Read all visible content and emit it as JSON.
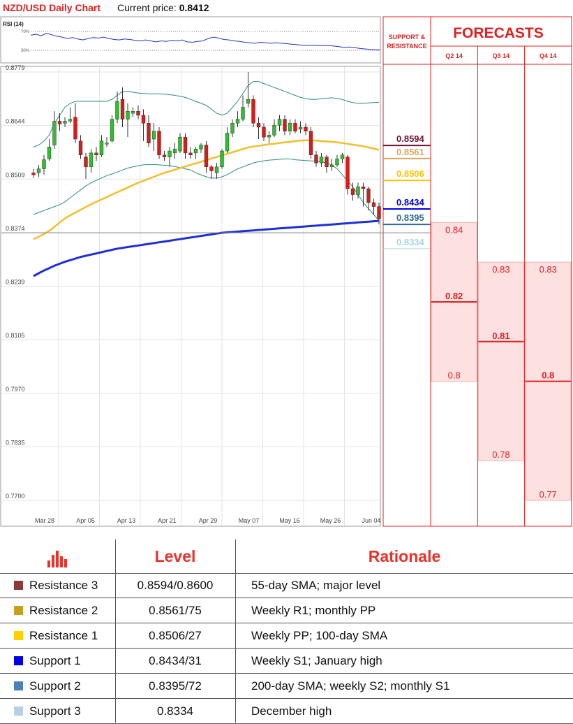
{
  "header": {
    "title": "NZD/USD Daily Chart",
    "price_label": "Current price:",
    "price_value": "0.8412"
  },
  "rsi": {
    "label": "RSI (14)",
    "upper_label": "70%",
    "lower_label": "30%"
  },
  "chart_data": {
    "type": "candlestick",
    "y_ticks": [
      "0.8779",
      "0.8644",
      "0.8509",
      "0.8374",
      "0.8239",
      "0.8105",
      "0.7970",
      "0.7835",
      "0.7700"
    ],
    "ylim": [
      0.77,
      0.8779
    ],
    "x_ticks": [
      "Mar 28",
      "Apr 05",
      "Apr 13",
      "Apr 21",
      "Apr 29",
      "May 07",
      "May 16",
      "May 26",
      "Jun 04"
    ],
    "grid": true,
    "candles": [
      [
        0.8525,
        0.852,
        0.8535,
        0.8512
      ],
      [
        0.8525,
        0.8535,
        0.8545,
        0.8515
      ],
      [
        0.8535,
        0.8558,
        0.857,
        0.852
      ],
      [
        0.856,
        0.859,
        0.861,
        0.8555
      ],
      [
        0.8595,
        0.8655,
        0.868,
        0.8585
      ],
      [
        0.8655,
        0.8648,
        0.8675,
        0.863
      ],
      [
        0.865,
        0.8655,
        0.8665,
        0.864
      ],
      [
        0.8655,
        0.866,
        0.869,
        0.865
      ],
      [
        0.8665,
        0.861,
        0.87,
        0.86
      ],
      [
        0.8605,
        0.857,
        0.862,
        0.856
      ],
      [
        0.8565,
        0.854,
        0.8575,
        0.851
      ],
      [
        0.854,
        0.8575,
        0.8585,
        0.8525
      ],
      [
        0.8575,
        0.857,
        0.859,
        0.8555
      ],
      [
        0.857,
        0.8605,
        0.862,
        0.8565
      ],
      [
        0.86,
        0.86,
        0.8615,
        0.859
      ],
      [
        0.8605,
        0.866,
        0.867,
        0.86
      ],
      [
        0.866,
        0.8705,
        0.873,
        0.865
      ],
      [
        0.871,
        0.866,
        0.874,
        0.864
      ],
      [
        0.866,
        0.868,
        0.87,
        0.8615
      ],
      [
        0.8675,
        0.868,
        0.869,
        0.8665
      ],
      [
        0.868,
        0.867,
        0.8695,
        0.866
      ],
      [
        0.867,
        0.865,
        0.8685,
        0.8605
      ],
      [
        0.865,
        0.86,
        0.867,
        0.859
      ],
      [
        0.861,
        0.863,
        0.865,
        0.858
      ],
      [
        0.863,
        0.857,
        0.864,
        0.856
      ],
      [
        0.857,
        0.8565,
        0.858,
        0.8555
      ],
      [
        0.8565,
        0.858,
        0.859,
        0.854
      ],
      [
        0.8575,
        0.8585,
        0.86,
        0.856
      ],
      [
        0.858,
        0.8615,
        0.8625,
        0.8575
      ],
      [
        0.8615,
        0.8575,
        0.8625,
        0.856
      ],
      [
        0.8575,
        0.857,
        0.859,
        0.856
      ],
      [
        0.8575,
        0.8585,
        0.859,
        0.856
      ],
      [
        0.8585,
        0.8595,
        0.86,
        0.8575
      ],
      [
        0.8595,
        0.854,
        0.8605,
        0.8525
      ],
      [
        0.854,
        0.853,
        0.8545,
        0.851
      ],
      [
        0.8525,
        0.854,
        0.855,
        0.851
      ],
      [
        0.854,
        0.858,
        0.8585,
        0.8535
      ],
      [
        0.858,
        0.8625,
        0.864,
        0.8575
      ],
      [
        0.8625,
        0.865,
        0.866,
        0.8615
      ],
      [
        0.865,
        0.866,
        0.868,
        0.864
      ],
      [
        0.866,
        0.869,
        0.872,
        0.8655
      ],
      [
        0.87,
        0.871,
        0.8779,
        0.869
      ],
      [
        0.871,
        0.865,
        0.872,
        0.864
      ],
      [
        0.865,
        0.864,
        0.8665,
        0.861
      ],
      [
        0.864,
        0.8615,
        0.865,
        0.8605
      ],
      [
        0.8615,
        0.862,
        0.863,
        0.86
      ],
      [
        0.862,
        0.8645,
        0.866,
        0.8615
      ],
      [
        0.8645,
        0.866,
        0.867,
        0.863
      ],
      [
        0.866,
        0.863,
        0.867,
        0.862
      ],
      [
        0.863,
        0.865,
        0.866,
        0.862
      ],
      [
        0.865,
        0.863,
        0.866,
        0.8625
      ],
      [
        0.8635,
        0.864,
        0.8655,
        0.8625
      ],
      [
        0.864,
        0.863,
        0.865,
        0.862
      ],
      [
        0.863,
        0.857,
        0.864,
        0.856
      ],
      [
        0.857,
        0.855,
        0.858,
        0.854
      ],
      [
        0.855,
        0.8565,
        0.8575,
        0.854
      ],
      [
        0.8565,
        0.854,
        0.857,
        0.8525
      ],
      [
        0.854,
        0.8545,
        0.856,
        0.853
      ],
      [
        0.8545,
        0.856,
        0.857,
        0.854
      ],
      [
        0.856,
        0.857,
        0.8575,
        0.855
      ],
      [
        0.8565,
        0.8485,
        0.857,
        0.847
      ],
      [
        0.8485,
        0.847,
        0.85,
        0.8455
      ],
      [
        0.847,
        0.849,
        0.85,
        0.846
      ],
      [
        0.849,
        0.8485,
        0.85,
        0.844
      ],
      [
        0.8485,
        0.845,
        0.849,
        0.843
      ],
      [
        0.845,
        0.844,
        0.846,
        0.842
      ],
      [
        0.844,
        0.841,
        0.845,
        0.8395
      ]
    ],
    "sma55": [
      0.8358,
      0.8364,
      0.8371,
      0.8379,
      0.8389,
      0.84,
      0.841,
      0.8418,
      0.8425,
      0.8432,
      0.8439,
      0.8446,
      0.8452,
      0.8458,
      0.8464,
      0.847,
      0.8476,
      0.8482,
      0.8488,
      0.8494,
      0.85,
      0.8505,
      0.851,
      0.8515,
      0.852,
      0.8525,
      0.8529,
      0.8533,
      0.8537,
      0.8541,
      0.8545,
      0.8549,
      0.8553,
      0.8557,
      0.8561,
      0.8565,
      0.8569,
      0.8573,
      0.8577,
      0.8581,
      0.8585,
      0.8589,
      0.8591,
      0.8593,
      0.8595,
      0.8597,
      0.8598,
      0.86,
      0.8602,
      0.8603,
      0.8605,
      0.8606,
      0.8607,
      0.8607,
      0.8606,
      0.8605,
      0.8604,
      0.8603,
      0.8602,
      0.86,
      0.8598,
      0.8596,
      0.8594,
      0.8592,
      0.8589,
      0.8586,
      0.8583
    ],
    "sma200": [
      0.8265,
      0.8272,
      0.8279,
      0.8285,
      0.8291,
      0.8296,
      0.8301,
      0.8305,
      0.8309,
      0.8313,
      0.8316,
      0.8319,
      0.8322,
      0.8325,
      0.8328,
      0.8331,
      0.8334,
      0.8336,
      0.8338,
      0.834,
      0.8342,
      0.8344,
      0.8346,
      0.8348,
      0.835,
      0.8352,
      0.8354,
      0.8356,
      0.8358,
      0.836,
      0.8362,
      0.8364,
      0.8366,
      0.8368,
      0.837,
      0.8372,
      0.8374,
      0.8375,
      0.8376,
      0.8377,
      0.8378,
      0.8379,
      0.838,
      0.8381,
      0.8382,
      0.8383,
      0.8384,
      0.8385,
      0.8386,
      0.8387,
      0.8388,
      0.8389,
      0.839,
      0.8391,
      0.8392,
      0.8393,
      0.8394,
      0.8395,
      0.8396,
      0.8397,
      0.8398,
      0.8399,
      0.84,
      0.8401,
      0.8402,
      0.8403,
      0.8404
    ],
    "bb_upper": [
      0.859,
      0.8595,
      0.8605,
      0.862,
      0.865,
      0.867,
      0.869,
      0.87,
      0.8705,
      0.8705,
      0.8705,
      0.8705,
      0.8705,
      0.8705,
      0.8705,
      0.871,
      0.872,
      0.873,
      0.873,
      0.8728,
      0.8726,
      0.8725,
      0.8724,
      0.8724,
      0.8724,
      0.8723,
      0.8722,
      0.872,
      0.8718,
      0.8715,
      0.871,
      0.8705,
      0.87,
      0.8695,
      0.8685,
      0.8675,
      0.867,
      0.8675,
      0.869,
      0.8705,
      0.8725,
      0.8745,
      0.8755,
      0.8755,
      0.875,
      0.8745,
      0.874,
      0.8735,
      0.873,
      0.8725,
      0.872,
      0.8715,
      0.8712,
      0.871,
      0.871,
      0.8712,
      0.8713,
      0.8714,
      0.8712,
      0.871,
      0.8705,
      0.8702,
      0.87,
      0.87,
      0.8701,
      0.8702,
      0.8703
    ],
    "bb_lower": [
      0.842,
      0.8425,
      0.843,
      0.8435,
      0.844,
      0.8445,
      0.8452,
      0.8462,
      0.8472,
      0.8482,
      0.8492,
      0.85,
      0.8506,
      0.8512,
      0.8518,
      0.8522,
      0.8527,
      0.8532,
      0.8537,
      0.854,
      0.8543,
      0.8545,
      0.8546,
      0.8546,
      0.8545,
      0.8544,
      0.8543,
      0.8541,
      0.8538,
      0.8535,
      0.8532,
      0.8525,
      0.852,
      0.8515,
      0.8512,
      0.8512,
      0.8515,
      0.852,
      0.8528,
      0.8535,
      0.854,
      0.8545,
      0.855,
      0.8553,
      0.8555,
      0.8557,
      0.8558,
      0.8559,
      0.856,
      0.856,
      0.8558,
      0.8557,
      0.8556,
      0.8555,
      0.8555,
      0.8553,
      0.855,
      0.8545,
      0.8535,
      0.852,
      0.8505,
      0.849,
      0.847,
      0.845,
      0.8435,
      0.842,
      0.8405
    ],
    "rsi_values": [
      62,
      64,
      61,
      66,
      63,
      60,
      58,
      55,
      57,
      54,
      52,
      55,
      57,
      56,
      58,
      55,
      53,
      52,
      54,
      53,
      51,
      50,
      52,
      50,
      48,
      50,
      49,
      51,
      50,
      52,
      48,
      47,
      49,
      50,
      55,
      58,
      56,
      53,
      52,
      50,
      49,
      47,
      46,
      45,
      47,
      46,
      45,
      46,
      45,
      44,
      43,
      42,
      41,
      40,
      41,
      40,
      40,
      40,
      39,
      38,
      36,
      37,
      36,
      34,
      33,
      32,
      31,
      31
    ]
  },
  "levels_panel": {
    "title": "SUPPORT & RESISTANCE",
    "levels": [
      {
        "label": "0.8594",
        "value": 0.8594,
        "color": "#6b1230"
      },
      {
        "label": "0.8561",
        "value": 0.8561,
        "color": "#d4a85c"
      },
      {
        "label": "0.8506",
        "value": 0.8506,
        "color": "#ffc000"
      },
      {
        "label": "0.8434",
        "value": 0.8434,
        "color": "#0000e0"
      },
      {
        "label": "0.8395",
        "value": 0.8395,
        "color": "#2f6b8a"
      },
      {
        "label": "0.8334",
        "value": 0.8334,
        "color": "#a8d8de"
      }
    ]
  },
  "forecasts": {
    "title": "FORECASTS",
    "columns": [
      {
        "label": "Q2 14",
        "high": 0.84,
        "high_label": "0.84",
        "mid": 0.82,
        "mid_label": "0.82",
        "low": 0.8,
        "low_label": "0.8"
      },
      {
        "label": "Q3 14",
        "high": 0.83,
        "high_label": "0.83",
        "mid": 0.81,
        "mid_label": "0.81",
        "low": 0.78,
        "low_label": "0.78"
      },
      {
        "label": "Q4 14",
        "high": 0.83,
        "high_label": "0.83",
        "mid": 0.8,
        "mid_label": "0.8",
        "low": 0.77,
        "low_label": "0.77"
      }
    ]
  },
  "table": {
    "header_icon": "bar-chart-icon",
    "level_header": "Level",
    "rationale_header": "Rationale",
    "rows": [
      {
        "name": "Resistance 3",
        "level": "0.8594/0.8600",
        "rationale": "55-day SMA; major level",
        "color": "#8b3a3a"
      },
      {
        "name": "Resistance 2",
        "level": "0.8561/75",
        "rationale": "Weekly R1; monthly PP",
        "color": "#c8a020"
      },
      {
        "name": "Resistance 1",
        "level": "0.8506/27",
        "rationale": "Weekly PP; 100-day SMA",
        "color": "#ffd000"
      },
      {
        "name": "Support 1",
        "level": "0.8434/31",
        "rationale": "Weekly S1; January high",
        "color": "#0000e0"
      },
      {
        "name": "Support 2",
        "level": "0.8395/72",
        "rationale": "200-day SMA; weekly S2; monthly S1",
        "color": "#4a7fb8"
      },
      {
        "name": "Support 3",
        "level": "0.8334",
        "rationale": "December high",
        "color": "#b8cfe6"
      }
    ]
  }
}
